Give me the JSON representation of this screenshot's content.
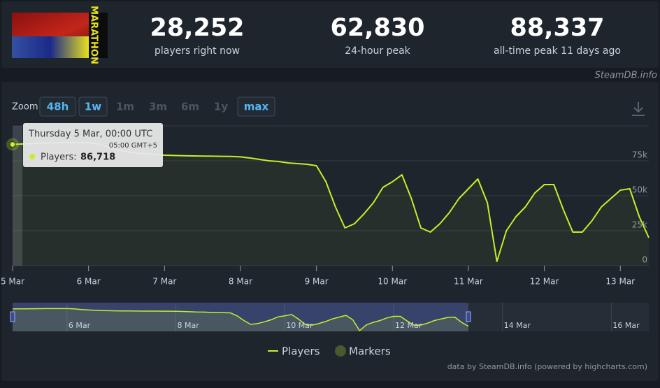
{
  "header": {
    "game_logo_text": "MARATHON",
    "stats": [
      {
        "value": "28,252",
        "label": "players right now"
      },
      {
        "value": "62,830",
        "label": "24-hour peak"
      },
      {
        "value": "88,337",
        "label": "all-time peak 11 days ago"
      }
    ],
    "watermark": "SteamDB.info"
  },
  "zoom": {
    "label": "Zoom",
    "buttons": [
      {
        "label": "48h",
        "enabled": true
      },
      {
        "label": "1w",
        "enabled": true
      },
      {
        "label": "1m",
        "enabled": false
      },
      {
        "label": "3m",
        "enabled": false
      },
      {
        "label": "6m",
        "enabled": false
      },
      {
        "label": "1y",
        "enabled": false
      },
      {
        "label": "max",
        "enabled": true
      }
    ]
  },
  "chart_data": {
    "type": "line",
    "categories": [
      "5 Mar",
      null,
      null,
      null,
      null,
      null,
      null,
      null,
      "6 Mar",
      null,
      null,
      null,
      null,
      null,
      null,
      null,
      "7 Mar",
      null,
      null,
      null,
      null,
      null,
      null,
      null,
      "8 Mar",
      null,
      null,
      null,
      null,
      null,
      null,
      null,
      "9 Mar",
      null,
      null,
      null,
      null,
      null,
      null,
      null,
      "10 Mar",
      null,
      null,
      null,
      null,
      null,
      null,
      null,
      "11 Mar",
      null,
      null,
      null,
      null,
      null,
      null,
      null,
      "12 Mar",
      null,
      null,
      null,
      null,
      null,
      null,
      null,
      "13 Mar",
      null,
      null,
      null
    ],
    "series": [
      {
        "name": "Players",
        "color": "#c2f02a",
        "values": [
          86718,
          87000,
          87300,
          87600,
          87800,
          88000,
          88000,
          88000,
          88000,
          87000,
          85000,
          83000,
          81500,
          80500,
          80000,
          79500,
          79000,
          78800,
          78600,
          78500,
          78400,
          78300,
          78200,
          78100,
          77800,
          77000,
          76000,
          75000,
          74500,
          73500,
          73000,
          72500,
          71500,
          60000,
          42000,
          27000,
          30000,
          37000,
          45000,
          56000,
          60000,
          65000,
          48000,
          27000,
          24000,
          30000,
          38000,
          48000,
          55000,
          62000,
          45000,
          3000,
          25000,
          35000,
          42000,
          52000,
          58000,
          58000,
          40000,
          24000,
          24000,
          32000,
          42000,
          48000,
          54000,
          55000,
          35000,
          20000
        ]
      }
    ],
    "markers": {
      "name": "Markers",
      "color": "#4b5a2c"
    },
    "ylim": [
      0,
      100000
    ],
    "yticks": [
      0,
      {
        "value": 25000,
        "label": "25k"
      },
      {
        "value": 50000,
        "label": "50k"
      },
      {
        "value": 75000,
        "label": "75k"
      }
    ],
    "grid": true,
    "tooltip": {
      "title": "Thursday 5 Mar, 00:00 UTC",
      "subtitle": "05:00 GMT+5",
      "label": "Players:",
      "value_label": "86,718"
    }
  },
  "navigator": {
    "labels": [
      "6 Mar",
      "8 Mar",
      "10 Mar",
      "12 Mar",
      "14 Mar",
      "16 Mar"
    ]
  },
  "footer": {
    "credit": "data by SteamDB.info (powered by highcharts.com)"
  }
}
